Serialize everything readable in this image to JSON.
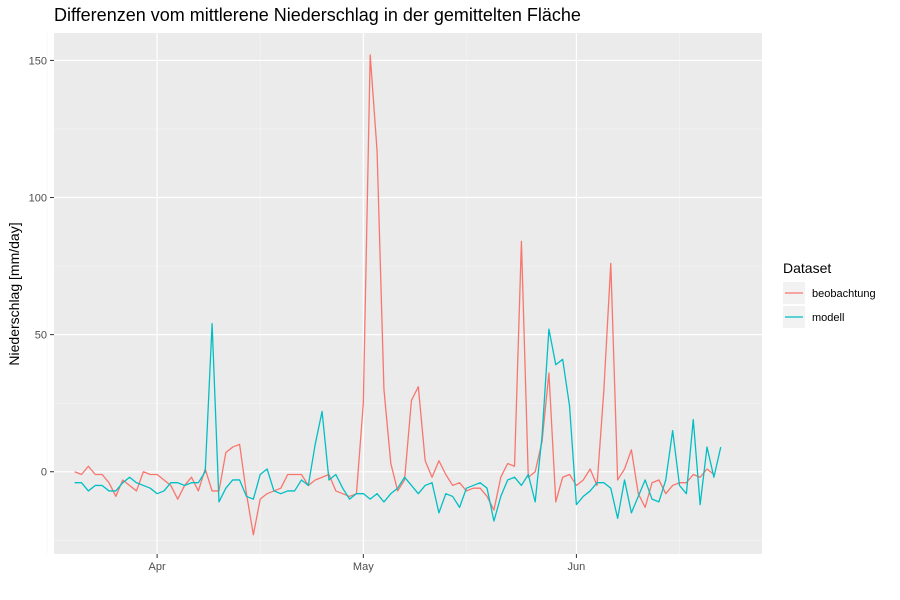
{
  "chart_data": {
    "type": "line",
    "title": "Differenzen vom mittlerene Niederschlag in der gemittelten Fläche",
    "xlabel": "",
    "ylabel": "Niederschlag [mm/day]",
    "x_start": "2024-03-20",
    "x_range": [
      "2024-03-17",
      "2024-06-28"
    ],
    "ylim": [
      -30,
      160
    ],
    "y_ticks": [
      0,
      50,
      100,
      150
    ],
    "x_ticks": [
      {
        "date": "2024-04-01",
        "label": "Apr"
      },
      {
        "date": "2024-05-01",
        "label": "May"
      },
      {
        "date": "2024-06-01",
        "label": "Jun"
      }
    ],
    "x_minor_ticks": [
      "2024-03-16",
      "2024-04-16",
      "2024-05-16",
      "2024-06-16"
    ],
    "grid": true,
    "legend_position": "right",
    "legend_title": "Dataset",
    "series": [
      {
        "name": "beobachtung",
        "color": "#F8766D",
        "values": [
          0,
          -1,
          2,
          -1,
          -1,
          -4,
          -9,
          -3,
          -5,
          -7,
          0,
          -1,
          -1,
          -3,
          -5,
          -10,
          -5,
          -2,
          -7,
          1,
          -7,
          -7,
          7,
          9,
          10,
          -8,
          -23,
          -10,
          -8,
          -7,
          -6,
          -1,
          -1,
          -1,
          -5,
          -3,
          -2,
          -1,
          -7,
          -8,
          -9,
          -8,
          25,
          152,
          117,
          30,
          3,
          -7,
          -3,
          26,
          31,
          4,
          -2,
          4,
          -1,
          -5,
          -4,
          -7,
          -6,
          -6,
          -9,
          -14,
          -2,
          3,
          2,
          84,
          -2,
          0,
          11,
          36,
          -11,
          -2,
          -1,
          -5,
          -3,
          1,
          -5,
          30,
          76,
          -3,
          1,
          8,
          -8,
          -13,
          -4,
          -3,
          -8,
          -5,
          -4,
          -4,
          -1,
          -2,
          1,
          -1
        ]
      },
      {
        "name": "modell",
        "color": "#00BFC4",
        "values": [
          -4,
          -4,
          -7,
          -5,
          -5,
          -7,
          -7,
          -4,
          -2,
          -4,
          -5,
          -6,
          -8,
          -7,
          -4,
          -4,
          -5,
          -4,
          -4,
          0,
          54,
          -11,
          -6,
          -3,
          -3,
          -9,
          -10,
          -1,
          1,
          -7,
          -8,
          -7,
          -7,
          -3,
          -5,
          10,
          22,
          -3,
          -1,
          -6,
          -10,
          -8,
          -8,
          -10,
          -8,
          -11,
          -8,
          -6,
          -2,
          -5,
          -8,
          -5,
          -4,
          -15,
          -8,
          -9,
          -13,
          -6,
          -5,
          -4,
          -6,
          -18,
          -9,
          -3,
          -2,
          -5,
          -1,
          -11,
          13,
          52,
          39,
          41,
          24,
          -12,
          -9,
          -7,
          -4,
          -4,
          -6,
          -17,
          -3,
          -15,
          -9,
          -3,
          -10,
          -11,
          -3,
          15,
          -5,
          -8,
          19,
          -12,
          9,
          -2,
          9
        ]
      }
    ]
  }
}
